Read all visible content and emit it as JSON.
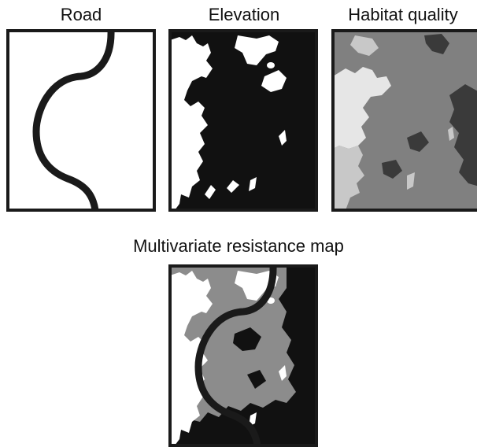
{
  "panels": [
    {
      "id": "road",
      "title": "Road"
    },
    {
      "id": "elevation",
      "title": "Elevation"
    },
    {
      "id": "habitat",
      "title": "Habitat quality"
    }
  ],
  "combined": {
    "title": "Multivariate resistance map"
  },
  "colors": {
    "frame": "#1a1a1a",
    "road": "#1a1a1a",
    "high_elevation": "#111111",
    "low_elevation": "#ffffff",
    "habitat_dark": "#3a3a3a",
    "habitat_mid": "#808080",
    "habitat_light": "#c8c8c8",
    "habitat_lightest": "#e6e6e6",
    "resistance_low": "#ffffff",
    "resistance_mid": "#8c8c8c",
    "resistance_high": "#111111"
  }
}
